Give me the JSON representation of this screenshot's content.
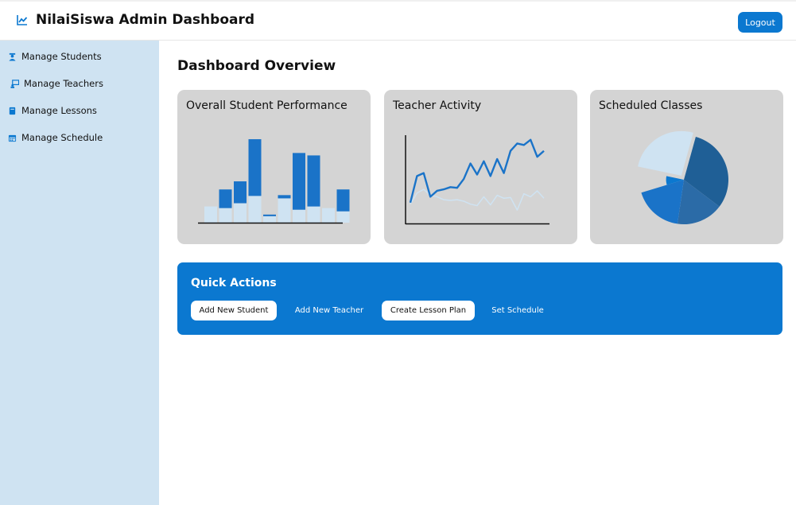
{
  "header": {
    "title": "NilaiSiswa Admin Dashboard",
    "logout_label": "Logout",
    "icon": "chart-line-icon"
  },
  "sidebar": {
    "items": [
      {
        "label": "Manage Students",
        "icon": "student-icon"
      },
      {
        "label": "Manage Teachers",
        "icon": "teacher-icon"
      },
      {
        "label": "Manage Lessons",
        "icon": "book-icon"
      },
      {
        "label": "Manage Schedule",
        "icon": "calendar-icon"
      }
    ]
  },
  "main": {
    "title": "Dashboard Overview",
    "cards": [
      {
        "title": "Overall Student Performance"
      },
      {
        "title": "Teacher Activity"
      },
      {
        "title": "Scheduled Classes"
      }
    ]
  },
  "quick_actions": {
    "title": "Quick Actions",
    "buttons": [
      {
        "label": "Add New Student"
      },
      {
        "label": "Add New Teacher"
      },
      {
        "label": "Create Lesson Plan"
      },
      {
        "label": "Set Schedule"
      }
    ]
  },
  "colors": {
    "accent": "#0b78d0",
    "sidebar_bg": "#cfe3f2",
    "card_bg": "#d4d4d4",
    "series_dark": "#1a73c8",
    "series_light": "#cfe3f2"
  },
  "chart_data": [
    {
      "type": "bar",
      "stacked": true,
      "grid": false,
      "legend": "none",
      "ylim": [
        0,
        105
      ],
      "categories": [
        "",
        "",
        "",
        "",
        "",
        "",
        "",
        "",
        "",
        ""
      ],
      "series": [
        {
          "values": [
            20,
            18,
            24,
            33,
            8,
            30,
            16,
            20,
            18,
            14
          ]
        },
        {
          "values": [
            0,
            23,
            27,
            70,
            2,
            4,
            70,
            63,
            0,
            27
          ]
        }
      ]
    },
    {
      "type": "line",
      "grid": false,
      "legend": "none",
      "ylim": [
        0,
        100
      ],
      "x": [
        0,
        1,
        2,
        3,
        4,
        5,
        6,
        7,
        8,
        9,
        10,
        11,
        12,
        13,
        14,
        15,
        16,
        17,
        18,
        19,
        20
      ],
      "series": [
        {
          "values": [
            12,
            48,
            52,
            20,
            28,
            30,
            33,
            32,
            44,
            65,
            50,
            68,
            48,
            71,
            52,
            82,
            92,
            90,
            97,
            74,
            82
          ]
        },
        {
          "values": [
            10,
            25,
            30,
            22,
            20,
            16,
            15,
            16,
            14,
            10,
            8,
            20,
            9,
            22,
            18,
            19,
            2,
            24,
            20,
            28,
            18
          ]
        }
      ]
    },
    {
      "type": "pie",
      "legend": "none",
      "values": [
        31,
        17,
        18,
        8,
        26
      ],
      "colors": [
        "#1f5f96",
        "#2b6ba7",
        "#1a73c8",
        "#0b78d0",
        "#cfe3f2"
      ]
    }
  ]
}
